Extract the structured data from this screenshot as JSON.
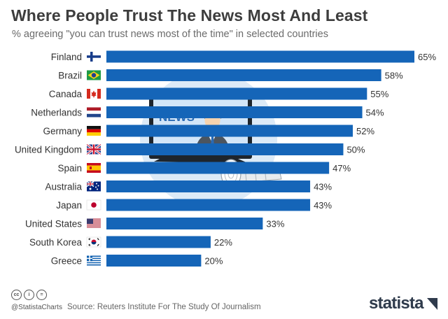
{
  "title": "Where People Trust The News Most And Least",
  "subtitle": "% agreeing \"you can trust news most of the time\" in selected countries",
  "illustration": {
    "screen_text": "NEWS"
  },
  "colors": {
    "bar": "#1565b8",
    "circle": "#dceaf7",
    "title": "#3d3d3d"
  },
  "chart_data": {
    "type": "bar",
    "orientation": "horizontal",
    "categories": [
      "Finland",
      "Brazil",
      "Canada",
      "Netherlands",
      "Germany",
      "United Kingdom",
      "Spain",
      "Australia",
      "Japan",
      "United States",
      "South Korea",
      "Greece"
    ],
    "values": [
      65,
      58,
      55,
      54,
      52,
      50,
      47,
      43,
      43,
      33,
      22,
      20
    ],
    "value_labels": [
      "65%",
      "58%",
      "55%",
      "54%",
      "52%",
      "50%",
      "47%",
      "43%",
      "43%",
      "33%",
      "22%",
      "20%"
    ],
    "flags": [
      "finland-flag-icon",
      "brazil-flag-icon",
      "canada-flag-icon",
      "netherlands-flag-icon",
      "germany-flag-icon",
      "uk-flag-icon",
      "spain-flag-icon",
      "australia-flag-icon",
      "japan-flag-icon",
      "usa-flag-icon",
      "south-korea-flag-icon",
      "greece-flag-icon"
    ],
    "xlim": [
      0,
      65
    ],
    "grid": false
  },
  "footer": {
    "license_icons": [
      "cc",
      "i",
      "="
    ],
    "handle": "@StatistaCharts",
    "source": "Source: Reuters Institute For The Study Of Journalism",
    "brand": "statista"
  }
}
